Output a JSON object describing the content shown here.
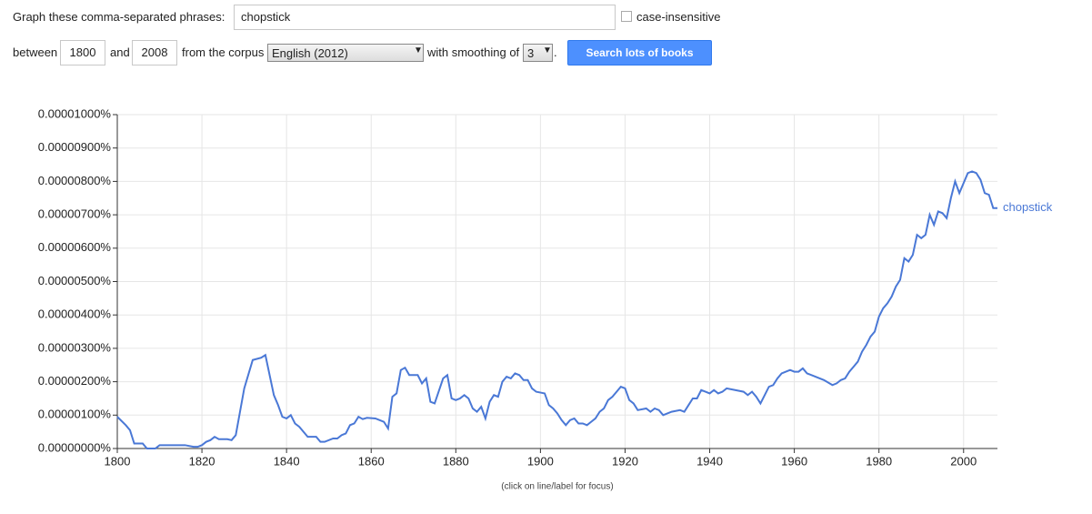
{
  "form": {
    "phrases_label": "Graph these comma-separated phrases:",
    "phrases_value": "chopstick",
    "case_label": "case-insensitive",
    "between_label": "between",
    "start_year": "1800",
    "and_label": "and",
    "end_year": "2008",
    "corpus_label": "from the corpus",
    "corpus_value": "English (2012)",
    "smoothing_label": "with smoothing of",
    "smoothing_value": "3",
    "period": ".",
    "button": "Search lots of books"
  },
  "footer": "(click on line/label for focus)",
  "chart_data": {
    "type": "line",
    "xlim": [
      1800,
      2008
    ],
    "xticks": [
      1800,
      1820,
      1840,
      1860,
      1880,
      1900,
      1920,
      1940,
      1960,
      1980,
      2000
    ],
    "ylim": [
      0,
      1e-05
    ],
    "yticks": [
      {
        "value": 0,
        "label": "0.00000000%"
      },
      {
        "value": 1e-06,
        "label": "0.00000100%"
      },
      {
        "value": 2e-06,
        "label": "0.00000200%"
      },
      {
        "value": 3e-06,
        "label": "0.00000300%"
      },
      {
        "value": 4e-06,
        "label": "0.00000400%"
      },
      {
        "value": 5e-06,
        "label": "0.00000500%"
      },
      {
        "value": 6e-06,
        "label": "0.00000600%"
      },
      {
        "value": 7e-06,
        "label": "0.00000700%"
      },
      {
        "value": 8e-06,
        "label": "0.00000800%"
      },
      {
        "value": 9e-06,
        "label": "0.00000900%"
      },
      {
        "value": 1e-05,
        "label": "0.00001000%"
      }
    ],
    "grid": true,
    "x": [
      1800,
      1802,
      1803,
      1804,
      1806,
      1807,
      1809,
      1810,
      1816,
      1818,
      1819,
      1820,
      1821,
      1822,
      1823,
      1824,
      1826,
      1827,
      1828,
      1830,
      1832,
      1834,
      1835,
      1837,
      1838,
      1839,
      1840,
      1841,
      1842,
      1843,
      1845,
      1847,
      1848,
      1849,
      1851,
      1852,
      1853,
      1854,
      1855,
      1856,
      1857,
      1858,
      1859,
      1861,
      1863,
      1864,
      1865,
      1866,
      1867,
      1868,
      1869,
      1871,
      1872,
      1873,
      1874,
      1875,
      1877,
      1878,
      1879,
      1880,
      1881,
      1882,
      1883,
      1884,
      1885,
      1886,
      1887,
      1888,
      1889,
      1890,
      1891,
      1892,
      1893,
      1894,
      1895,
      1896,
      1897,
      1898,
      1899,
      1901,
      1902,
      1903,
      1904,
      1905,
      1906,
      1907,
      1908,
      1909,
      1910,
      1911,
      1912,
      1913,
      1914,
      1915,
      1916,
      1917,
      1918,
      1919,
      1920,
      1921,
      1922,
      1923,
      1925,
      1926,
      1927,
      1928,
      1929,
      1931,
      1933,
      1934,
      1935,
      1936,
      1937,
      1938,
      1939,
      1940,
      1941,
      1942,
      1943,
      1944,
      1946,
      1948,
      1949,
      1950,
      1951,
      1952,
      1953,
      1954,
      1955,
      1956,
      1957,
      1958,
      1959,
      1960,
      1961,
      1962,
      1963,
      1965,
      1967,
      1969,
      1970,
      1971,
      1972,
      1973,
      1974,
      1975,
      1976,
      1977,
      1978,
      1979,
      1980,
      1981,
      1982,
      1983,
      1984,
      1985,
      1986,
      1987,
      1988,
      1989,
      1990,
      1991,
      1992,
      1993,
      1994,
      1995,
      1996,
      1997,
      1998,
      1999,
      2000,
      2001,
      2002,
      2003,
      2004,
      2005,
      2006,
      2007,
      2008
    ],
    "series": [
      {
        "name": "chopstick",
        "color": "#4a78d6",
        "values": [
          9.5e-07,
          7e-07,
          5.5e-07,
          1.5e-07,
          1.5e-07,
          0,
          0,
          1e-07,
          1e-07,
          5e-08,
          5e-08,
          1e-07,
          2e-07,
          2.5e-07,
          3.5e-07,
          2.8e-07,
          2.8e-07,
          2.5e-07,
          4e-07,
          1.8e-06,
          2.65e-06,
          2.72e-06,
          2.8e-06,
          1.6e-06,
          1.3e-06,
          9.5e-07,
          9e-07,
          1e-06,
          7.5e-07,
          6.5e-07,
          3.5e-07,
          3.5e-07,
          2e-07,
          2e-07,
          3e-07,
          3e-07,
          4e-07,
          4.5e-07,
          7e-07,
          7.5e-07,
          9.5e-07,
          8.8e-07,
          9.2e-07,
          9e-07,
          8e-07,
          6e-07,
          1.55e-06,
          1.65e-06,
          2.35e-06,
          2.42e-06,
          2.2e-06,
          2.2e-06,
          1.95e-06,
          2.1e-06,
          1.4e-06,
          1.35e-06,
          2.1e-06,
          2.2e-06,
          1.5e-06,
          1.45e-06,
          1.5e-06,
          1.6e-06,
          1.5e-06,
          1.2e-06,
          1.1e-06,
          1.25e-06,
          9e-07,
          1.4e-06,
          1.6e-06,
          1.55e-06,
          2e-06,
          2.15e-06,
          2.1e-06,
          2.25e-06,
          2.2e-06,
          2.05e-06,
          2.05e-06,
          1.8e-06,
          1.7e-06,
          1.65e-06,
          1.3e-06,
          1.2e-06,
          1.05e-06,
          8.5e-07,
          7e-07,
          8.5e-07,
          9e-07,
          7.5e-07,
          7.5e-07,
          7e-07,
          8e-07,
          9e-07,
          1.1e-06,
          1.2e-06,
          1.45e-06,
          1.55e-06,
          1.7e-06,
          1.85e-06,
          1.8e-06,
          1.45e-06,
          1.35e-06,
          1.15e-06,
          1.2e-06,
          1.1e-06,
          1.2e-06,
          1.15e-06,
          1e-06,
          1.1e-06,
          1.15e-06,
          1.1e-06,
          1.3e-06,
          1.5e-06,
          1.5e-06,
          1.75e-06,
          1.7e-06,
          1.65e-06,
          1.75e-06,
          1.65e-06,
          1.7e-06,
          1.8e-06,
          1.75e-06,
          1.7e-06,
          1.6e-06,
          1.7e-06,
          1.55e-06,
          1.35e-06,
          1.6e-06,
          1.85e-06,
          1.9e-06,
          2.1e-06,
          2.25e-06,
          2.3e-06,
          2.35e-06,
          2.3e-06,
          2.3e-06,
          2.4e-06,
          2.25e-06,
          2.15e-06,
          2.05e-06,
          1.9e-06,
          1.95e-06,
          2.05e-06,
          2.1e-06,
          2.3e-06,
          2.45e-06,
          2.6e-06,
          2.9e-06,
          3.1e-06,
          3.35e-06,
          3.5e-06,
          3.95e-06,
          4.2e-06,
          4.35e-06,
          4.55e-06,
          4.85e-06,
          5.05e-06,
          5.7e-06,
          5.6e-06,
          5.8e-06,
          6.4e-06,
          6.3e-06,
          6.4e-06,
          7e-06,
          6.7e-06,
          7.1e-06,
          7.05e-06,
          6.9e-06,
          7.5e-06,
          8e-06,
          7.65e-06,
          7.95e-06,
          8.25e-06,
          8.3e-06,
          8.25e-06,
          8.05e-06,
          7.65e-06,
          7.6e-06,
          7.2e-06,
          7.2e-06
        ]
      }
    ]
  }
}
